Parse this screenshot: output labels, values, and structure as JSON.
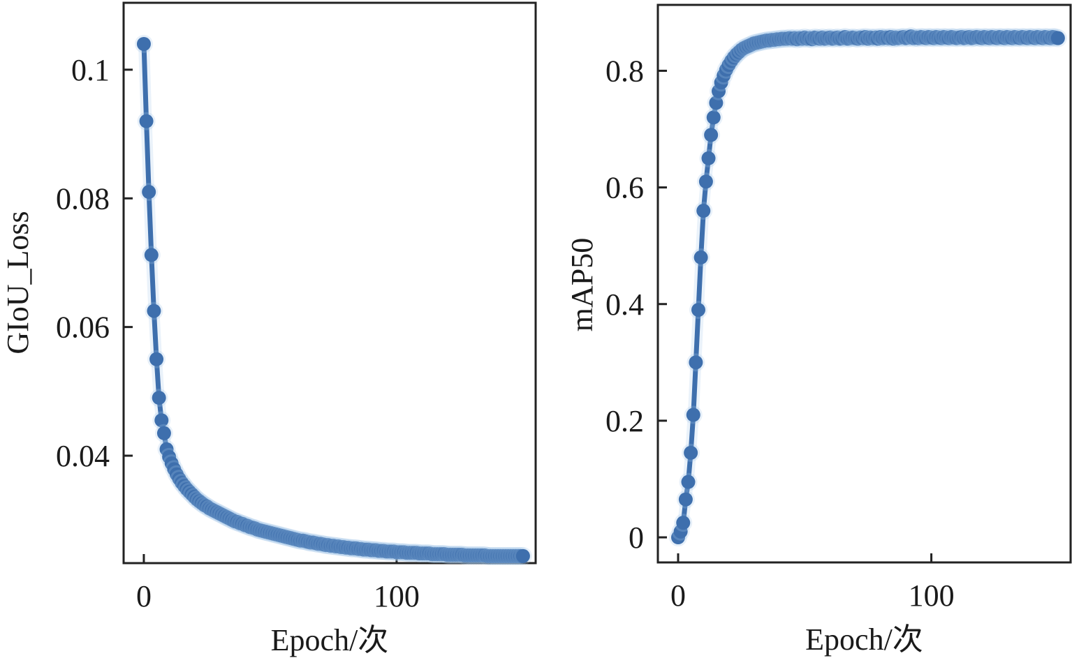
{
  "colors": {
    "series": "#3e6fad",
    "halo": "#9fc3e6"
  },
  "chart_data": [
    {
      "type": "line",
      "title": "",
      "xlabel": "Epoch/次",
      "ylabel": "GIoU_Loss",
      "xlim": [
        -8,
        155
      ],
      "ylim": [
        0.0233,
        0.1104
      ],
      "xticks": [
        0,
        100
      ],
      "xtick_labels": [
        "0",
        "100"
      ],
      "yticks": [
        0.04,
        0.06,
        0.08,
        0.1
      ],
      "ytick_labels": [
        "0.04",
        "0.06",
        "0.08",
        "0.1"
      ],
      "grid": false,
      "marker": "circle",
      "series": [
        {
          "x": [
            0,
            1,
            2,
            3,
            4,
            5,
            6,
            7,
            8,
            9,
            10,
            11,
            12,
            13,
            14,
            15,
            16,
            17,
            18,
            19,
            20,
            21,
            22,
            23,
            24,
            25,
            26,
            27,
            28,
            29,
            30,
            31,
            32,
            33,
            34,
            35,
            36,
            37,
            38,
            39,
            40,
            41,
            42,
            43,
            44,
            45,
            46,
            47,
            48,
            49,
            50,
            51,
            52,
            53,
            54,
            55,
            56,
            57,
            58,
            59,
            60,
            61,
            62,
            63,
            64,
            65,
            66,
            67,
            68,
            69,
            70,
            71,
            72,
            73,
            74,
            75,
            76,
            77,
            78,
            79,
            80,
            81,
            82,
            83,
            84,
            85,
            86,
            87,
            88,
            89,
            90,
            91,
            92,
            93,
            94,
            95,
            96,
            97,
            98,
            99,
            100,
            101,
            102,
            103,
            104,
            105,
            106,
            107,
            108,
            109,
            110,
            111,
            112,
            113,
            114,
            115,
            116,
            117,
            118,
            119,
            120,
            121,
            122,
            123,
            124,
            125,
            126,
            127,
            128,
            129,
            130,
            131,
            132,
            133,
            134,
            135,
            136,
            137,
            138,
            139,
            140,
            141,
            142,
            143,
            144,
            145,
            146,
            147,
            148,
            149,
            150
          ],
          "values": [
            0.104,
            0.092,
            0.081,
            0.0712,
            0.0625,
            0.055,
            0.049,
            0.0455,
            0.0435,
            0.041,
            0.0398,
            0.0388,
            0.0379,
            0.0371,
            0.0364,
            0.0358,
            0.0353,
            0.0348,
            0.0344,
            0.034,
            0.0336,
            0.0332,
            0.0329,
            0.0326,
            0.0323,
            0.0321,
            0.0318,
            0.0316,
            0.0314,
            0.0312,
            0.031,
            0.0308,
            0.0306,
            0.0304,
            0.0302,
            0.03,
            0.0298,
            0.0297,
            0.0295,
            0.0294,
            0.0292,
            0.0291,
            0.0289,
            0.0288,
            0.0287,
            0.0285,
            0.0284,
            0.0283,
            0.0282,
            0.0281,
            0.028,
            0.0279,
            0.0278,
            0.0277,
            0.0276,
            0.0275,
            0.0274,
            0.0273,
            0.0272,
            0.0271,
            0.027,
            0.0269,
            0.0268,
            0.0268,
            0.0267,
            0.0266,
            0.0265,
            0.0265,
            0.0264,
            0.0263,
            0.0263,
            0.0262,
            0.0261,
            0.0261,
            0.026,
            0.026,
            0.0259,
            0.0259,
            0.0258,
            0.0258,
            0.0257,
            0.0257,
            0.0256,
            0.0256,
            0.0256,
            0.0255,
            0.0255,
            0.0254,
            0.0254,
            0.0254,
            0.0253,
            0.0253,
            0.0253,
            0.0252,
            0.0252,
            0.0252,
            0.0251,
            0.0251,
            0.0251,
            0.0251,
            0.025,
            0.025,
            0.025,
            0.025,
            0.0249,
            0.0249,
            0.0249,
            0.0249,
            0.0249,
            0.0248,
            0.0248,
            0.0248,
            0.0248,
            0.0248,
            0.0247,
            0.0247,
            0.0247,
            0.0247,
            0.0247,
            0.0247,
            0.0246,
            0.0246,
            0.0246,
            0.0246,
            0.0246,
            0.0246,
            0.0246,
            0.0245,
            0.0245,
            0.0245,
            0.0245,
            0.0245,
            0.0245,
            0.0245,
            0.0245,
            0.0245,
            0.0244,
            0.0244,
            0.0244,
            0.0244,
            0.0244,
            0.0244,
            0.0244,
            0.0244,
            0.0244,
            0.0244,
            0.0244,
            0.0244,
            0.0244,
            0.0244,
            0.0244
          ]
        }
      ]
    },
    {
      "type": "line",
      "title": "",
      "xlabel": "Epoch/次",
      "ylabel": "mAP50",
      "xlim": [
        -8,
        155
      ],
      "ylim": [
        -0.043,
        0.913
      ],
      "xticks": [
        0,
        100
      ],
      "xtick_labels": [
        "0",
        "100"
      ],
      "yticks": [
        0,
        0.2,
        0.4,
        0.6,
        0.8
      ],
      "ytick_labels": [
        "0",
        "0.2",
        "0.4",
        "0.6",
        "0.8"
      ],
      "grid": false,
      "marker": "circle",
      "series": [
        {
          "x": [
            0,
            1,
            2,
            3,
            4,
            5,
            6,
            7,
            8,
            9,
            10,
            11,
            12,
            13,
            14,
            15,
            16,
            17,
            18,
            19,
            20,
            21,
            22,
            23,
            24,
            25,
            26,
            27,
            28,
            29,
            30,
            31,
            32,
            33,
            34,
            35,
            36,
            37,
            38,
            39,
            40,
            41,
            42,
            43,
            44,
            45,
            46,
            47,
            48,
            49,
            50,
            51,
            52,
            53,
            54,
            55,
            56,
            57,
            58,
            59,
            60,
            61,
            62,
            63,
            64,
            65,
            66,
            67,
            68,
            69,
            70,
            71,
            72,
            73,
            74,
            75,
            76,
            77,
            78,
            79,
            80,
            81,
            82,
            83,
            84,
            85,
            86,
            87,
            88,
            89,
            90,
            91,
            92,
            93,
            94,
            95,
            96,
            97,
            98,
            99,
            100,
            101,
            102,
            103,
            104,
            105,
            106,
            107,
            108,
            109,
            110,
            111,
            112,
            113,
            114,
            115,
            116,
            117,
            118,
            119,
            120,
            121,
            122,
            123,
            124,
            125,
            126,
            127,
            128,
            129,
            130,
            131,
            132,
            133,
            134,
            135,
            136,
            137,
            138,
            139,
            140,
            141,
            142,
            143,
            144,
            145,
            146,
            147,
            148,
            149,
            150
          ],
          "values": [
            0.0,
            0.01,
            0.025,
            0.065,
            0.095,
            0.145,
            0.21,
            0.3,
            0.39,
            0.48,
            0.56,
            0.61,
            0.65,
            0.69,
            0.72,
            0.745,
            0.765,
            0.78,
            0.792,
            0.802,
            0.81,
            0.817,
            0.823,
            0.828,
            0.832,
            0.836,
            0.839,
            0.841,
            0.843,
            0.845,
            0.847,
            0.848,
            0.849,
            0.85,
            0.851,
            0.852,
            0.852,
            0.853,
            0.853,
            0.854,
            0.854,
            0.855,
            0.855,
            0.855,
            0.856,
            0.855,
            0.856,
            0.854,
            0.856,
            0.855,
            0.857,
            0.855,
            0.856,
            0.854,
            0.857,
            0.856,
            0.855,
            0.857,
            0.855,
            0.856,
            0.857,
            0.855,
            0.856,
            0.857,
            0.855,
            0.856,
            0.858,
            0.855,
            0.856,
            0.857,
            0.856,
            0.855,
            0.857,
            0.856,
            0.858,
            0.855,
            0.857,
            0.856,
            0.857,
            0.855,
            0.858,
            0.856,
            0.857,
            0.856,
            0.858,
            0.855,
            0.857,
            0.856,
            0.857,
            0.858,
            0.856,
            0.857,
            0.859,
            0.856,
            0.857,
            0.856,
            0.858,
            0.857,
            0.856,
            0.858,
            0.857,
            0.856,
            0.858,
            0.857,
            0.856,
            0.858,
            0.857,
            0.856,
            0.858,
            0.857,
            0.856,
            0.857,
            0.858,
            0.856,
            0.857,
            0.858,
            0.856,
            0.857,
            0.858,
            0.857,
            0.856,
            0.858,
            0.857,
            0.856,
            0.858,
            0.857,
            0.856,
            0.858,
            0.857,
            0.856,
            0.858,
            0.857,
            0.856,
            0.858,
            0.857,
            0.856,
            0.858,
            0.857,
            0.856,
            0.858,
            0.857,
            0.856,
            0.858,
            0.857,
            0.856,
            0.858,
            0.857,
            0.856,
            0.858,
            0.857,
            0.856
          ]
        }
      ]
    }
  ]
}
